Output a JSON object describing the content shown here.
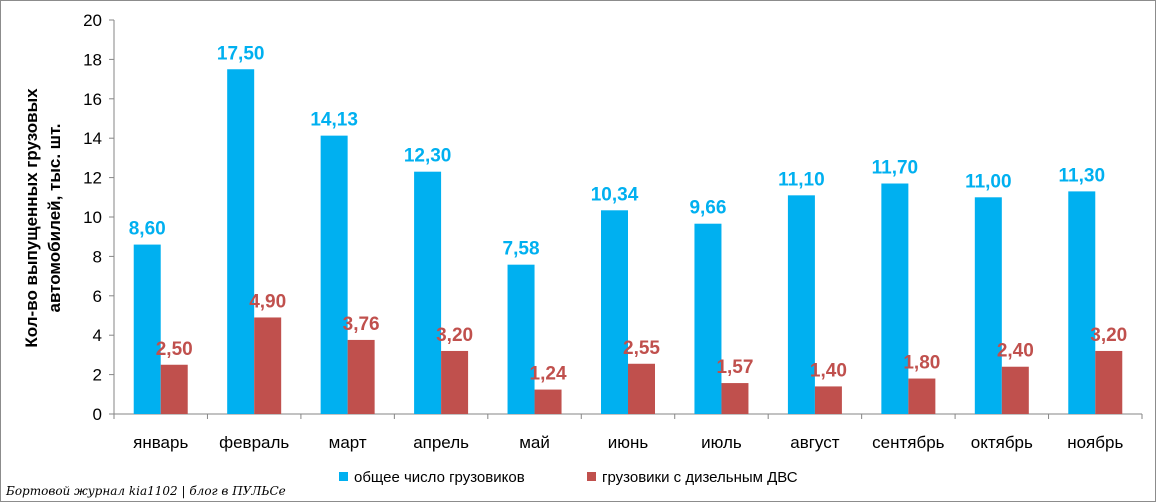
{
  "chart_data": {
    "type": "bar",
    "categories": [
      "январь",
      "февраль",
      "март",
      "апрель",
      "май",
      "июнь",
      "июль",
      "август",
      "сентябрь",
      "октябрь",
      "ноябрь"
    ],
    "series": [
      {
        "name": "общее число грузовиков",
        "color": "#00B0F0",
        "values": [
          8.6,
          17.5,
          14.13,
          12.3,
          7.58,
          10.34,
          9.66,
          11.1,
          11.7,
          11.0,
          11.3
        ],
        "labels": [
          "8,60",
          "17,50",
          "14,13",
          "12,30",
          "7,58",
          "10,34",
          "9,66",
          "11,10",
          "11,70",
          "11,00",
          "11,30"
        ]
      },
      {
        "name": "грузовики с дизельным ДВС",
        "color": "#C0504D",
        "values": [
          2.5,
          4.9,
          3.76,
          3.2,
          1.24,
          2.55,
          1.57,
          1.4,
          1.8,
          2.4,
          3.2
        ],
        "labels": [
          "2,50",
          "4,90",
          "3,76",
          "3,20",
          "1,24",
          "2,55",
          "1,57",
          "1,40",
          "1,80",
          "2,40",
          "3,20"
        ]
      }
    ],
    "ylabel_lines": [
      "Кол-во выпущенных грузовых",
      "автомобилей, тыс. шт."
    ],
    "ylim": [
      0,
      20
    ],
    "yticks": [
      "0",
      "2",
      "4",
      "6",
      "8",
      "10",
      "12",
      "14",
      "16",
      "18",
      "20"
    ],
    "grid": false,
    "legend_position": "bottom"
  },
  "watermark": "Бортовой журнал kia1102 | блог в ПУЛЬСе"
}
